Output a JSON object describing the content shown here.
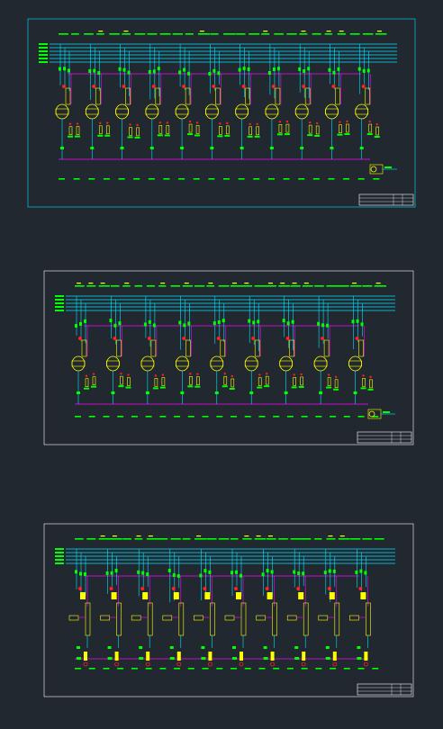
{
  "app": {
    "background": "#212830"
  },
  "colors": {
    "header_lines": "#00e5ff",
    "pipes": "#00e5ff",
    "magenta": "#ff00ff",
    "green": "#00ff00",
    "yellow": "#ffff00",
    "red": "#ff2020",
    "sheet_border_1": "#00e5ff",
    "sheet_border": "#ffffff",
    "inner_frame": "#ffffff"
  },
  "drawings": [
    {
      "id": "sheet-1",
      "border_color": "sheet_border_1",
      "header_line_count": 6,
      "units": 11,
      "has_equipment_row_two": true,
      "has_pump": true,
      "variant": "reactor"
    },
    {
      "id": "sheet-2",
      "border_color": "sheet_border",
      "header_line_count": 5,
      "units": 9,
      "has_equipment_row_two": true,
      "has_pump": true,
      "variant": "reactor"
    },
    {
      "id": "sheet-3",
      "border_color": "sheet_border",
      "header_line_count": 5,
      "units": 10,
      "has_equipment_row_two": true,
      "has_pump": false,
      "variant": "column"
    }
  ]
}
